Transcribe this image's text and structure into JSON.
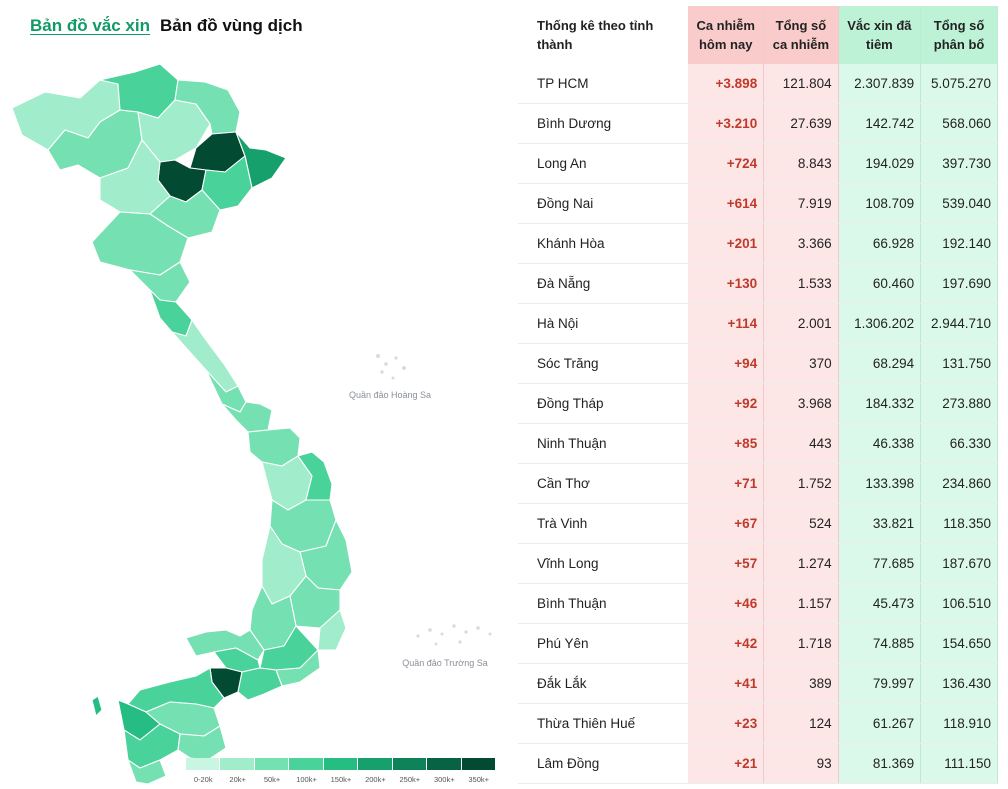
{
  "tabs": {
    "vaccine_map": "Bản đồ vắc xin",
    "epidemic_map": "Bản đồ vùng dịch"
  },
  "map": {
    "label_hoang_sa": "Quần đảo Hoàng Sa",
    "label_truong_sa": "Quần đảo Trường Sa",
    "colors": [
      "#c9f6e2",
      "#a1ecca",
      "#75e0b2",
      "#49d299",
      "#25bd82",
      "#16a06c",
      "#0e8258",
      "#086244",
      "#034a32"
    ],
    "legend": [
      "0-20k",
      "20k+",
      "50k+",
      "100k+",
      "150k+",
      "200k+",
      "250k+",
      "300k+",
      "350k+"
    ]
  },
  "chart_data": {
    "type": "table",
    "columns": [
      "Thống kê theo tỉnh thành",
      "Ca nhiễm hôm nay",
      "Tổng số ca nhiễm",
      "Vắc xin đã tiêm",
      "Tổng số phân bổ"
    ],
    "rows": [
      [
        "TP HCM",
        "+3.898",
        "121.804",
        "2.307.839",
        "5.075.270"
      ],
      [
        "Bình Dương",
        "+3.210",
        "27.639",
        "142.742",
        "568.060"
      ],
      [
        "Long An",
        "+724",
        "8.843",
        "194.029",
        "397.730"
      ],
      [
        "Đồng Nai",
        "+614",
        "7.919",
        "108.709",
        "539.040"
      ],
      [
        "Khánh Hòa",
        "+201",
        "3.366",
        "66.928",
        "192.140"
      ],
      [
        "Đà Nẵng",
        "+130",
        "1.533",
        "60.460",
        "197.690"
      ],
      [
        "Hà Nội",
        "+114",
        "2.001",
        "1.306.202",
        "2.944.710"
      ],
      [
        "Sóc Trăng",
        "+94",
        "370",
        "68.294",
        "131.750"
      ],
      [
        "Đồng Tháp",
        "+92",
        "3.968",
        "184.332",
        "273.880"
      ],
      [
        "Ninh Thuận",
        "+85",
        "443",
        "46.338",
        "66.330"
      ],
      [
        "Cần Thơ",
        "+71",
        "1.752",
        "133.398",
        "234.860"
      ],
      [
        "Trà Vinh",
        "+67",
        "524",
        "33.821",
        "118.350"
      ],
      [
        "Vĩnh Long",
        "+57",
        "1.274",
        "77.685",
        "187.670"
      ],
      [
        "Bình Thuận",
        "+46",
        "1.157",
        "45.473",
        "106.510"
      ],
      [
        "Phú Yên",
        "+42",
        "1.718",
        "74.885",
        "154.650"
      ],
      [
        "Đắk Lắk",
        "+41",
        "389",
        "79.997",
        "136.430"
      ],
      [
        "Thừa Thiên Huế",
        "+23",
        "124",
        "61.267",
        "118.910"
      ],
      [
        "Lâm Đồng",
        "+21",
        "93",
        "81.369",
        "111.150"
      ]
    ]
  }
}
